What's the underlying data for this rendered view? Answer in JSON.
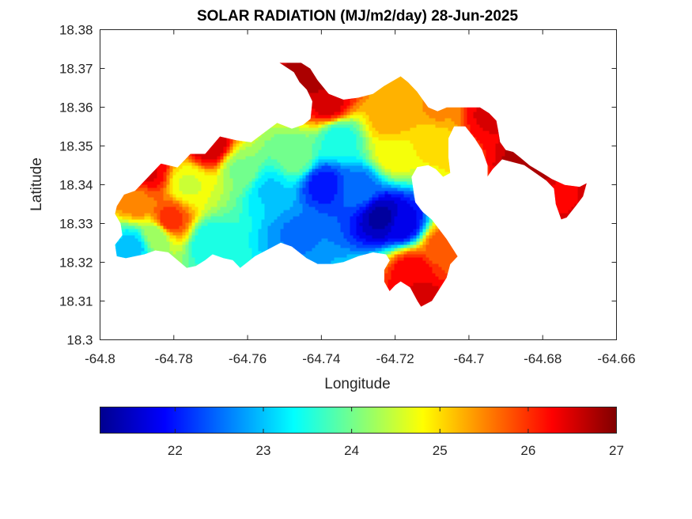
{
  "chart_data": {
    "type": "heatmap",
    "title": "SOLAR RADIATION (MJ/m2/day) 28-Jun-2025",
    "xlabel": "Longitude",
    "ylabel": "Latitude",
    "xlim": [
      -64.8,
      -64.66
    ],
    "ylim": [
      18.3,
      18.38
    ],
    "x_ticks": [
      -64.8,
      -64.78,
      -64.76,
      -64.74,
      -64.72,
      -64.7,
      -64.68,
      -64.66
    ],
    "x_tick_labels": [
      "-64.8",
      "-64.78",
      "-64.76",
      "-64.74",
      "-64.72",
      "-64.7",
      "-64.68",
      "-64.66"
    ],
    "y_ticks": [
      18.3,
      18.31,
      18.32,
      18.33,
      18.34,
      18.35,
      18.36,
      18.37,
      18.38
    ],
    "y_tick_labels": [
      "18.3",
      "18.31",
      "18.32",
      "18.33",
      "18.34",
      "18.35",
      "18.36",
      "18.37",
      "18.38"
    ],
    "grid": false,
    "colorbar": {
      "placement": "bottom",
      "colormap": "jet",
      "range": [
        21.15,
        27
      ],
      "ticks": [
        22,
        23,
        24,
        25,
        26,
        27
      ],
      "tick_labels": [
        "22",
        "23",
        "24",
        "25",
        "26",
        "27"
      ]
    },
    "colormap_stops": [
      "#00008f",
      "#0000ff",
      "#00ffff",
      "#ffff00",
      "#ff0000",
      "#800000"
    ],
    "island_outline": [
      [
        -64.7955,
        18.3345
      ],
      [
        -64.7935,
        18.3375
      ],
      [
        -64.7905,
        18.3385
      ],
      [
        -64.7865,
        18.3425
      ],
      [
        -64.7835,
        18.3455
      ],
      [
        -64.779,
        18.3445
      ],
      [
        -64.7755,
        18.348
      ],
      [
        -64.7715,
        18.348
      ],
      [
        -64.7675,
        18.3525
      ],
      [
        -64.763,
        18.3515
      ],
      [
        -64.759,
        18.351
      ],
      [
        -64.7555,
        18.3535
      ],
      [
        -64.752,
        18.356
      ],
      [
        -64.748,
        18.3545
      ],
      [
        -64.745,
        18.3555
      ],
      [
        -64.743,
        18.357
      ],
      [
        -64.7425,
        18.3615
      ],
      [
        -64.744,
        18.3645
      ],
      [
        -64.746,
        18.3665
      ],
      [
        -64.7475,
        18.369
      ],
      [
        -64.7515,
        18.3715
      ],
      [
        -64.7455,
        18.3715
      ],
      [
        -64.743,
        18.37
      ],
      [
        -64.741,
        18.367
      ],
      [
        -64.738,
        18.3635
      ],
      [
        -64.734,
        18.362
      ],
      [
        -64.73,
        18.3625
      ],
      [
        -64.726,
        18.3635
      ],
      [
        -64.723,
        18.3655
      ],
      [
        -64.7185,
        18.368
      ],
      [
        -64.7165,
        18.3665
      ],
      [
        -64.714,
        18.364
      ],
      [
        -64.711,
        18.36
      ],
      [
        -64.7085,
        18.359
      ],
      [
        -64.706,
        18.36
      ],
      [
        -64.701,
        18.36
      ],
      [
        -64.697,
        18.36
      ],
      [
        -64.6945,
        18.3585
      ],
      [
        -64.6925,
        18.3565
      ],
      [
        -64.692,
        18.354
      ],
      [
        -64.6915,
        18.351
      ],
      [
        -64.69,
        18.349
      ],
      [
        -64.688,
        18.3485
      ],
      [
        -64.686,
        18.347
      ],
      [
        -64.6835,
        18.345
      ],
      [
        -64.68,
        18.343
      ],
      [
        -64.6775,
        18.3415
      ],
      [
        -64.674,
        18.34
      ],
      [
        -64.67,
        18.3395
      ],
      [
        -64.668,
        18.3405
      ],
      [
        -64.669,
        18.337
      ],
      [
        -64.671,
        18.3345
      ],
      [
        -64.6735,
        18.3315
      ],
      [
        -64.675,
        18.331
      ],
      [
        -64.6765,
        18.335
      ],
      [
        -64.677,
        18.339
      ],
      [
        -64.679,
        18.341
      ],
      [
        -64.682,
        18.343
      ],
      [
        -64.685,
        18.345
      ],
      [
        -64.689,
        18.346
      ],
      [
        -64.691,
        18.3465
      ],
      [
        -64.6935,
        18.344
      ],
      [
        -64.695,
        18.342
      ],
      [
        -64.695,
        18.345
      ],
      [
        -64.6965,
        18.349
      ],
      [
        -64.6985,
        18.352
      ],
      [
        -64.701,
        18.355
      ],
      [
        -64.704,
        18.355
      ],
      [
        -64.7055,
        18.352
      ],
      [
        -64.7055,
        18.347
      ],
      [
        -64.705,
        18.343
      ],
      [
        -64.707,
        18.342
      ],
      [
        -64.709,
        18.344
      ],
      [
        -64.711,
        18.345
      ],
      [
        -64.714,
        18.3445
      ],
      [
        -64.7155,
        18.342
      ],
      [
        -64.715,
        18.3385
      ],
      [
        -64.7145,
        18.3355
      ],
      [
        -64.7125,
        18.333
      ],
      [
        -64.71,
        18.331
      ],
      [
        -64.708,
        18.3285
      ],
      [
        -64.706,
        18.326
      ],
      [
        -64.704,
        18.323
      ],
      [
        -64.703,
        18.3215
      ],
      [
        -64.705,
        18.3195
      ],
      [
        -64.706,
        18.316
      ],
      [
        -64.708,
        18.313
      ],
      [
        -64.71,
        18.31
      ],
      [
        -64.713,
        18.3085
      ],
      [
        -64.714,
        18.31
      ],
      [
        -64.716,
        18.3135
      ],
      [
        -64.7185,
        18.315
      ],
      [
        -64.72,
        18.314
      ],
      [
        -64.7215,
        18.3125
      ],
      [
        -64.723,
        18.315
      ],
      [
        -64.723,
        18.318
      ],
      [
        -64.7215,
        18.3205
      ],
      [
        -64.7225,
        18.322
      ],
      [
        -64.726,
        18.3225
      ],
      [
        -64.73,
        18.3215
      ],
      [
        -64.734,
        18.32
      ],
      [
        -64.737,
        18.3195
      ],
      [
        -64.741,
        18.3195
      ],
      [
        -64.744,
        18.321
      ],
      [
        -64.748,
        18.324
      ],
      [
        -64.751,
        18.325
      ],
      [
        -64.755,
        18.323
      ],
      [
        -64.758,
        18.3215
      ],
      [
        -64.76,
        18.32
      ],
      [
        -64.762,
        18.3185
      ],
      [
        -64.764,
        18.3205
      ],
      [
        -64.7665,
        18.321
      ],
      [
        -64.7695,
        18.322
      ],
      [
        -64.7715,
        18.3205
      ],
      [
        -64.774,
        18.319
      ],
      [
        -64.7765,
        18.3185
      ],
      [
        -64.779,
        18.3205
      ],
      [
        -64.7815,
        18.3225
      ],
      [
        -64.785,
        18.323
      ],
      [
        -64.788,
        18.322
      ],
      [
        -64.7905,
        18.3215
      ],
      [
        -64.793,
        18.321
      ],
      [
        -64.7955,
        18.3215
      ],
      [
        -64.796,
        18.3245
      ],
      [
        -64.794,
        18.327
      ],
      [
        -64.7945,
        18.33
      ],
      [
        -64.796,
        18.3325
      ]
    ],
    "field_sources": [
      {
        "lon": -64.7235,
        "lat": 18.3315,
        "value": 21.3
      },
      {
        "lon": -64.718,
        "lat": 18.33,
        "value": 21.7
      },
      {
        "lon": -64.7395,
        "lat": 18.34,
        "value": 22.0
      },
      {
        "lon": -64.7465,
        "lat": 18.3275,
        "value": 22.6
      },
      {
        "lon": -64.73,
        "lat": 18.339,
        "value": 22.5
      },
      {
        "lon": -64.754,
        "lat": 18.3385,
        "value": 23.1
      },
      {
        "lon": -64.77,
        "lat": 18.325,
        "value": 23.4
      },
      {
        "lon": -64.785,
        "lat": 18.3265,
        "value": 24.2
      },
      {
        "lon": -64.762,
        "lat": 18.344,
        "value": 24.1
      },
      {
        "lon": -64.776,
        "lat": 18.34,
        "value": 24.6
      },
      {
        "lon": -64.747,
        "lat": 18.347,
        "value": 24.0
      },
      {
        "lon": -64.735,
        "lat": 18.352,
        "value": 23.5
      },
      {
        "lon": -64.72,
        "lat": 18.348,
        "value": 24.8
      },
      {
        "lon": -64.7215,
        "lat": 18.357,
        "value": 25.3
      },
      {
        "lon": -64.7095,
        "lat": 18.352,
        "value": 25.0
      },
      {
        "lon": -64.7085,
        "lat": 18.359,
        "value": 25.4
      },
      {
        "lon": -64.738,
        "lat": 18.361,
        "value": 26.5
      },
      {
        "lon": -64.742,
        "lat": 18.368,
        "value": 26.8
      },
      {
        "lon": -64.77,
        "lat": 18.35,
        "value": 26.6
      },
      {
        "lon": -64.787,
        "lat": 18.343,
        "value": 26.4
      },
      {
        "lon": -64.7895,
        "lat": 18.336,
        "value": 25.6
      },
      {
        "lon": -64.781,
        "lat": 18.331,
        "value": 26.0
      },
      {
        "lon": -64.791,
        "lat": 18.324,
        "value": 23.0
      },
      {
        "lon": -64.7155,
        "lat": 18.318,
        "value": 26.3
      },
      {
        "lon": -64.714,
        "lat": 18.31,
        "value": 26.6
      },
      {
        "lon": -64.707,
        "lat": 18.324,
        "value": 25.8
      },
      {
        "lon": -64.695,
        "lat": 18.358,
        "value": 26.4
      },
      {
        "lon": -64.683,
        "lat": 18.346,
        "value": 26.8
      },
      {
        "lon": -64.672,
        "lat": 18.339,
        "value": 26.3
      },
      {
        "lon": -64.669,
        "lat": 18.34,
        "value": 26.6
      }
    ]
  }
}
